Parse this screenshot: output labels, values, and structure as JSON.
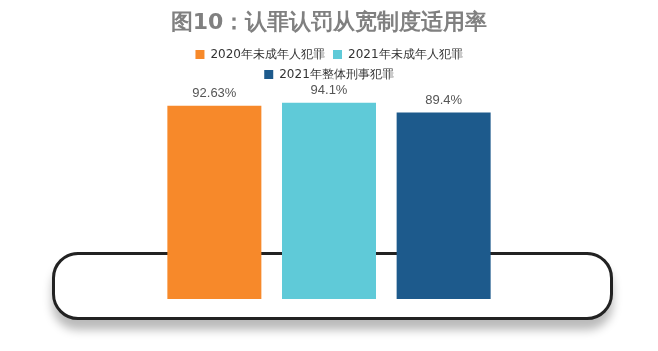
{
  "chart_data": {
    "type": "bar",
    "title": "图10：认罪认罚从宽制度适用率",
    "categories": [
      null
    ],
    "series": [
      {
        "name": "2020年未成年人犯罪",
        "color": "#f7892a",
        "values": [
          92.63
        ],
        "value_labels": [
          "92.63%"
        ]
      },
      {
        "name": "2021年未成年人犯罪",
        "color": "#5fcad8",
        "values": [
          94.1
        ],
        "value_labels": [
          "94.1%"
        ]
      },
      {
        "name": "2021年整体刑事犯罪",
        "color": "#1d5a8c",
        "values": [
          89.4
        ],
        "value_labels": [
          "89.4%"
        ]
      }
    ],
    "ylim": [
      0,
      100
    ],
    "grid": false,
    "legend": "top",
    "data_labels": true,
    "tick_labels": false
  }
}
